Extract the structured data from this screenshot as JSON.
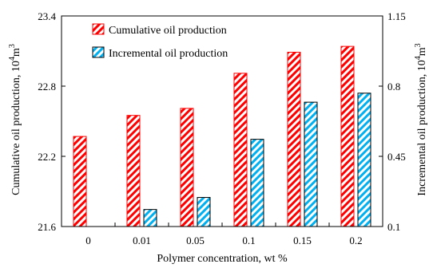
{
  "chart_data": {
    "type": "bar",
    "xlabel": "Polymer concentration, wt %",
    "ylabel_left": "Cumulative oil production, 10",
    "ylabel_left_sup": "4",
    "ylabel_left_unit": "m",
    "ylabel_left_unit_sup": "3",
    "ylabel_right": "Incremental oil production, 10",
    "ylabel_right_sup": "4",
    "ylabel_right_unit": "m",
    "ylabel_right_unit_sup": "3",
    "categories": [
      "0",
      "0.01",
      "0.05",
      "0.1",
      "0.15",
      "0.2"
    ],
    "ylim_left": [
      21.6,
      23.4
    ],
    "yticks_left": [
      "21.6",
      "22.2",
      "22.8",
      "23.4"
    ],
    "ylim_right": [
      0.1,
      1.15
    ],
    "yticks_right": [
      "0.1",
      "0.45",
      "0.8",
      "1.15"
    ],
    "grid": false,
    "legend_position": "top-left",
    "series": [
      {
        "name": "Cumulative oil production",
        "axis": "left",
        "color": "#ff0000",
        "pattern": "red-hatch",
        "values": [
          22.37,
          22.55,
          22.61,
          22.91,
          23.09,
          23.14
        ]
      },
      {
        "name": "Incremental oil production",
        "axis": "right",
        "color": "#00b0f0",
        "pattern": "blue-hatch",
        "values": [
          0.1,
          0.185,
          0.245,
          0.535,
          0.72,
          0.765
        ]
      }
    ]
  }
}
